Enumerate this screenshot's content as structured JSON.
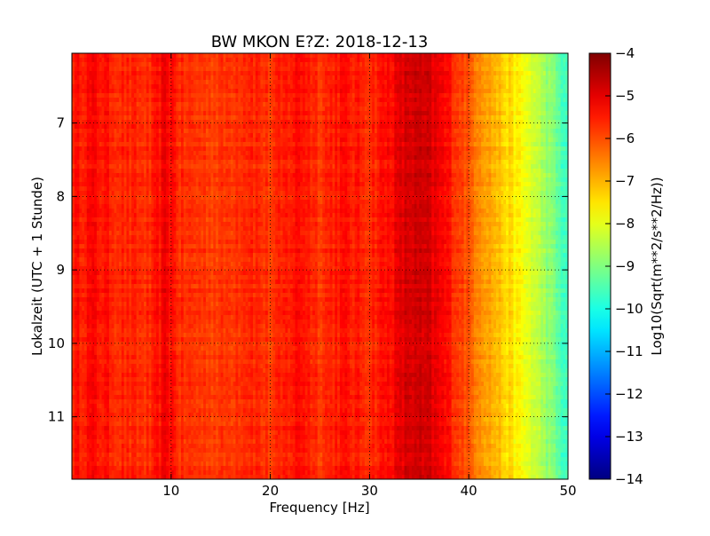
{
  "chart_data": {
    "type": "heatmap",
    "title": "BW MKON E?Z: 2018-12-13",
    "xlabel": "Frequency [Hz]",
    "ylabel": "Lokalzeit (UTC + 1 Stunde)",
    "xlim": [
      0,
      50
    ],
    "ylim": [
      6.05,
      11.85
    ],
    "y_inverted": true,
    "x_ticks": [
      10,
      20,
      30,
      40,
      50
    ],
    "y_ticks": [
      7,
      8,
      9,
      10,
      11
    ],
    "grid": true,
    "colormap": "jet",
    "colorbar": {
      "label": "Log10(Sqrt(m**2/s**2/Hz))",
      "min": -14,
      "max": -4,
      "ticks": [
        -4,
        -5,
        -6,
        -7,
        -8,
        -9,
        -10,
        -11,
        -12,
        -13,
        -14
      ]
    },
    "spectrum_profile": {
      "frequency_hz": [
        0,
        2,
        5,
        8,
        9.5,
        11,
        15,
        18,
        20,
        23,
        25,
        27,
        30,
        32,
        34,
        36,
        38,
        40,
        42,
        44,
        46,
        48,
        50
      ],
      "log10_amplitude": [
        -5.5,
        -5.3,
        -5.6,
        -5.7,
        -5.1,
        -5.7,
        -5.8,
        -5.5,
        -5.8,
        -5.3,
        -5.7,
        -5.4,
        -5.6,
        -5.3,
        -4.8,
        -4.9,
        -5.4,
        -6.1,
        -6.8,
        -7.4,
        -8.0,
        -8.8,
        -9.8
      ]
    }
  }
}
